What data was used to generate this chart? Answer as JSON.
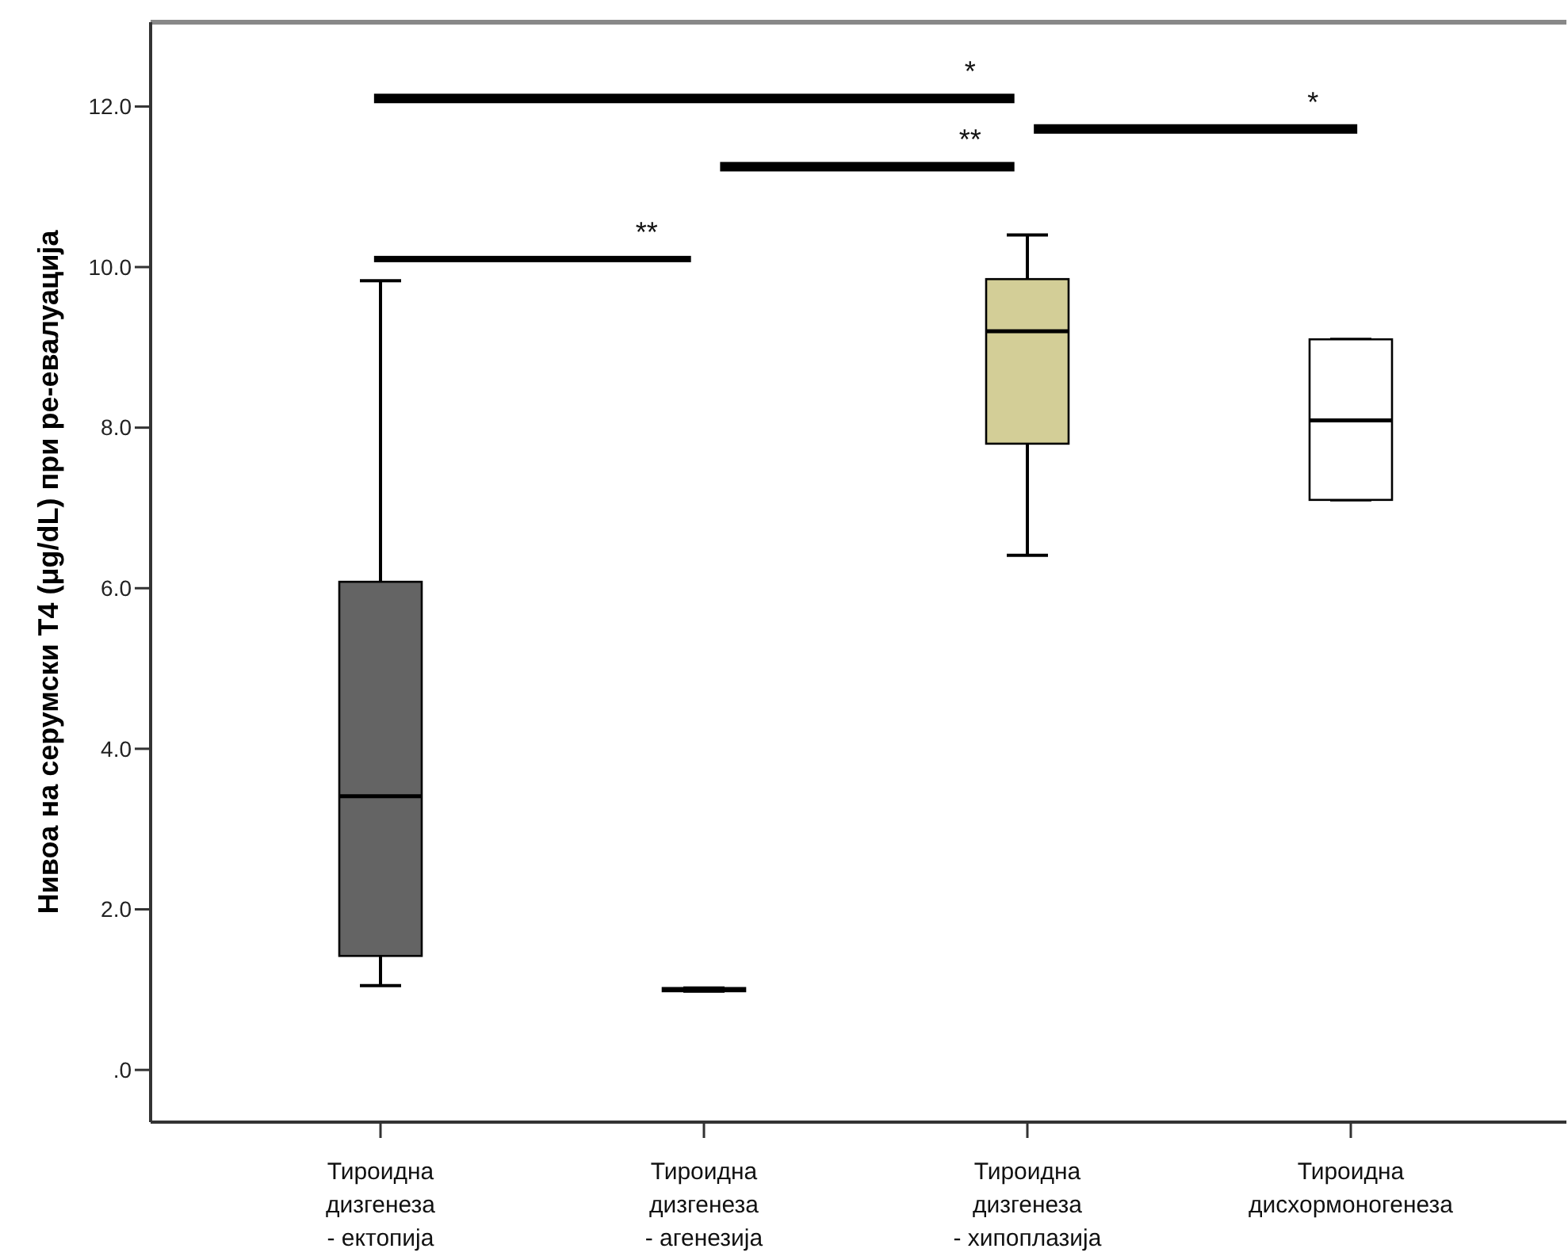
{
  "chart_data": {
    "type": "box",
    "ylabel": "Нивоа на серумски Т4 (μg/dL) при ре-евалуација",
    "categories": [
      "Тироидна\nдизгенеза\n- ектопија",
      "Тироидна\nдизгенеза\n- агенезија",
      "Тироидна\nдизгенеза\n- хипоплазија",
      "Тироидна\nдисхормоногенеза"
    ],
    "boxes": [
      {
        "low": 1.05,
        "q1": 1.42,
        "median": 3.41,
        "q3": 6.08,
        "high": 9.83
      },
      {
        "low": 0.98,
        "q1": 0.98,
        "median": 1.0,
        "q3": 1.02,
        "high": 1.02
      },
      {
        "low": 6.41,
        "q1": 7.8,
        "median": 9.2,
        "q3": 9.85,
        "high": 10.4
      },
      {
        "low": 7.1,
        "q1": 7.1,
        "median": 8.09,
        "q3": 9.1,
        "high": 9.1
      }
    ],
    "colors": [
      "#646464",
      "#ffffff",
      "#d3ce97",
      "#ffffff"
    ],
    "ylim": [
      -0.65,
      13.05
    ],
    "yticks": [
      {
        "value": 0,
        "label": ".0"
      },
      {
        "value": 2,
        "label": "2.0"
      },
      {
        "value": 4,
        "label": "4.0"
      },
      {
        "value": 6,
        "label": "6.0"
      },
      {
        "value": 8,
        "label": "8.0"
      },
      {
        "value": 10,
        "label": "10.0"
      },
      {
        "value": 12,
        "label": "12.0"
      }
    ],
    "annotations": [
      "*",
      "*",
      "**",
      "**"
    ]
  }
}
